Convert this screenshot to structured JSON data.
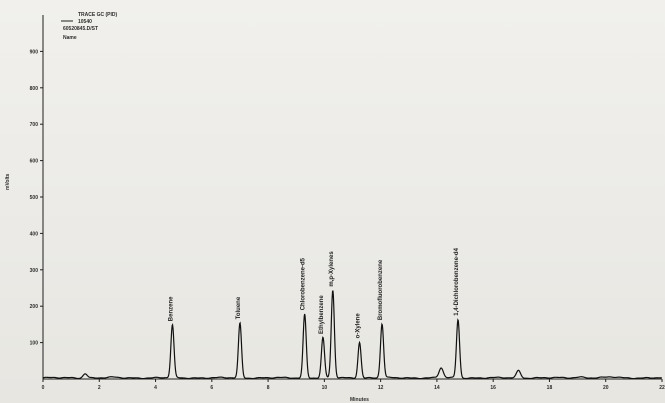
{
  "header": {
    "line1": "TRACE GC (PID)",
    "line2": "10540",
    "line3": "60520845.D/ST",
    "line4": "Name"
  },
  "colors": {
    "trace": "#111111",
    "axis": "#1f1f1f",
    "text": "#2b2b2b"
  },
  "chart_data": {
    "type": "line",
    "title": "",
    "xlabel": "Minutes",
    "ylabel": "mVolts",
    "xlim": [
      0,
      22
    ],
    "ylim": [
      0,
      1000
    ],
    "x_ticks": [
      0,
      2,
      4,
      6,
      8,
      10,
      12,
      14,
      16,
      18,
      20,
      22
    ],
    "y_ticks": [
      100,
      200,
      300,
      400,
      500,
      600,
      700,
      800,
      900
    ],
    "peaks": [
      {
        "name": "Benzene",
        "rt": 4.6,
        "height": 145
      },
      {
        "name": "Toluene",
        "rt": 7.0,
        "height": 150
      },
      {
        "name": "Chlorobenzene-d5",
        "rt": 9.3,
        "height": 175
      },
      {
        "name": "Ethylbenzene",
        "rt": 9.95,
        "height": 110
      },
      {
        "name": "m,p-Xylenes",
        "rt": 10.3,
        "height": 240
      },
      {
        "name": "o-Xylene",
        "rt": 11.25,
        "height": 98
      },
      {
        "name": "Bromofluorobenzene",
        "rt": 12.05,
        "height": 148
      },
      {
        "name": "1,4-Dichlorobenzene-d4",
        "rt": 14.75,
        "height": 160
      },
      {
        "name": "",
        "rt": 1.5,
        "height": 12
      },
      {
        "name": "",
        "rt": 14.15,
        "height": 27
      },
      {
        "name": "",
        "rt": 16.9,
        "height": 20
      }
    ]
  }
}
